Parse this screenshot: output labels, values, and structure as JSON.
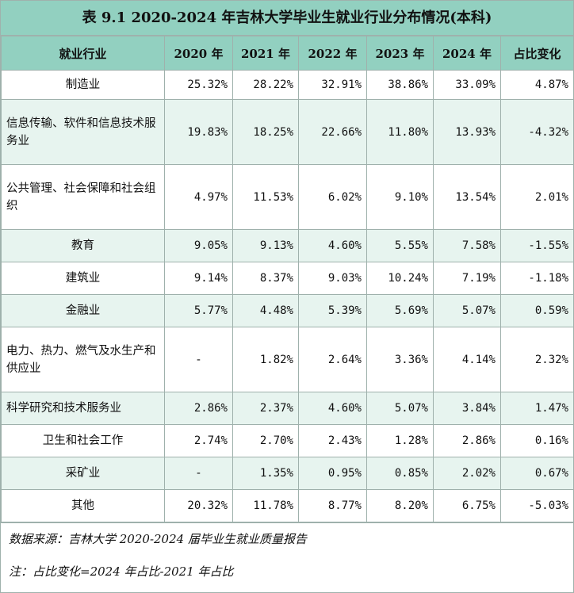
{
  "title": "表 9.1 2020-2024 年吉林大学毕业生就业行业分布情况(本科)",
  "headers": [
    "就业行业",
    "2020 年",
    "2021 年",
    "2022 年",
    "2023 年",
    "2024 年",
    "占比变化"
  ],
  "rows": [
    {
      "industry": "制造业",
      "values": [
        "25.32%",
        "28.22%",
        "32.91%",
        "38.86%",
        "33.09%",
        "4.87%"
      ]
    },
    {
      "industry": "信息传输、软件和信息技术服务业",
      "values": [
        "19.83%",
        "18.25%",
        "22.66%",
        "11.80%",
        "13.93%",
        "-4.32%"
      ]
    },
    {
      "industry": "公共管理、社会保障和社会组织",
      "values": [
        "4.97%",
        "11.53%",
        "6.02%",
        "9.10%",
        "13.54%",
        "2.01%"
      ]
    },
    {
      "industry": "教育",
      "values": [
        "9.05%",
        "9.13%",
        "4.60%",
        "5.55%",
        "7.58%",
        "-1.55%"
      ]
    },
    {
      "industry": "建筑业",
      "values": [
        "9.14%",
        "8.37%",
        "9.03%",
        "10.24%",
        "7.19%",
        "-1.18%"
      ]
    },
    {
      "industry": "金融业",
      "values": [
        "5.77%",
        "4.48%",
        "5.39%",
        "5.69%",
        "5.07%",
        "0.59%"
      ]
    },
    {
      "industry": "电力、热力、燃气及水生产和供应业",
      "values": [
        "-",
        "1.82%",
        "2.64%",
        "3.36%",
        "4.14%",
        "2.32%"
      ]
    },
    {
      "industry": "科学研究和技术服务业",
      "values": [
        "2.86%",
        "2.37%",
        "4.60%",
        "5.07%",
        "3.84%",
        "1.47%"
      ]
    },
    {
      "industry": "卫生和社会工作",
      "values": [
        "2.74%",
        "2.70%",
        "2.43%",
        "1.28%",
        "2.86%",
        "0.16%"
      ]
    },
    {
      "industry": "采矿业",
      "values": [
        "-",
        "1.35%",
        "0.95%",
        "0.85%",
        "2.02%",
        "0.67%"
      ]
    },
    {
      "industry": "其他",
      "values": [
        "20.32%",
        "11.78%",
        "8.77%",
        "8.20%",
        "6.75%",
        "-5.03%"
      ]
    }
  ],
  "footer": {
    "source": "数据来源：吉林大学 2020-2024 届毕业生就业质量报告",
    "note": "注：占比变化=2024 年占比-2021 年占比"
  },
  "colors": {
    "header_bg": "#92d0c0",
    "row_alt_bg": "#e7f4ef",
    "border": "#9fb1ac"
  }
}
